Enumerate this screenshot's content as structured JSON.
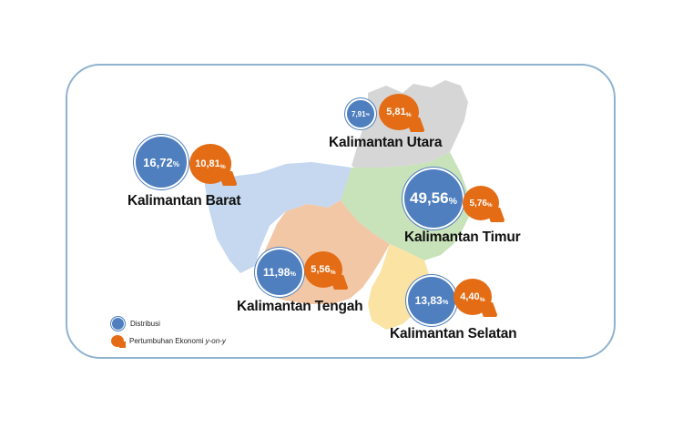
{
  "colors": {
    "frame_border": "#8fb3cf",
    "distribution_bubble": "#4f7fbf",
    "growth_marker": "#e36c14",
    "kalimantan_barat": "#c5d8ef",
    "kalimantan_tengah": "#f2c7a6",
    "kalimantan_utara": "#d6d6d6",
    "kalimantan_timur": "#c8e2b9",
    "kalimantan_selatan": "#fae3a3"
  },
  "regions": [
    {
      "name": "Kalimantan Utara",
      "distribusi": "7,91",
      "pertumbuhan": "5,81"
    },
    {
      "name": "Kalimantan Barat",
      "distribusi": "16,72",
      "pertumbuhan": "10,81"
    },
    {
      "name": "Kalimantan Timur",
      "distribusi": "49,56",
      "pertumbuhan": "5,76"
    },
    {
      "name": "Kalimantan Tengah",
      "distribusi": "11,98",
      "pertumbuhan": "5,56"
    },
    {
      "name": "Kalimantan Selatan",
      "distribusi": "13,83",
      "pertumbuhan": "4,40"
    }
  ],
  "percent_sign": "%",
  "legend": {
    "distribusi": "Distribusi",
    "pertumbuhan_prefix": "Pertumbuhan Ekonomi ",
    "pertumbuhan_italic": "y-on-y"
  }
}
